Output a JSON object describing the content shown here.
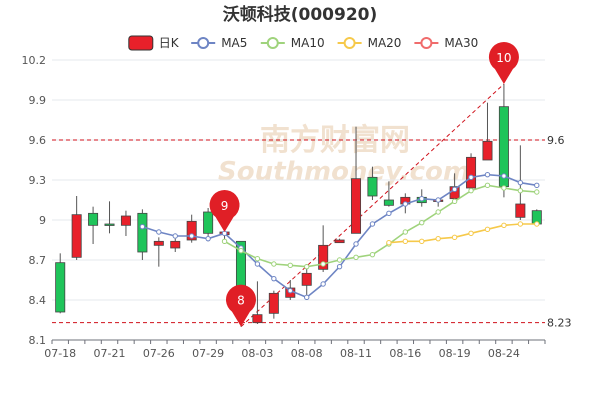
{
  "chart_data": {
    "type": "candlestick",
    "title": "沃顿科技(000920)",
    "watermark": {
      "cn": "南方财富网",
      "en": "Southmoney.com"
    },
    "legend": [
      {
        "key": "k",
        "label": "日K",
        "color": "#e8202a",
        "style": "candle"
      },
      {
        "key": "ma5",
        "label": "MA5",
        "color": "#6e85c4",
        "style": "line"
      },
      {
        "key": "ma10",
        "label": "MA10",
        "color": "#9fd37c",
        "style": "line"
      },
      {
        "key": "ma20",
        "label": "MA20",
        "color": "#f6c94a",
        "style": "line"
      },
      {
        "key": "ma30",
        "label": "MA30",
        "color": "#f06c6c",
        "style": "line"
      }
    ],
    "colors": {
      "up": "#e8202a",
      "down": "#1fc45a",
      "grid": "#e6e9ee",
      "ref": "#d0111b"
    },
    "ylim": [
      8.1,
      10.2
    ],
    "yticks": [
      8.1,
      8.4,
      8.7,
      9,
      9.3,
      9.6,
      9.9,
      10.2
    ],
    "ytick_labels": [
      "8.1",
      "8.4",
      "8.7",
      "9",
      "9.3",
      "9.6",
      "9.9",
      "10.2"
    ],
    "dates": [
      "07-18",
      "07-19",
      "07-20",
      "07-21",
      "07-22",
      "07-25",
      "07-26",
      "07-27",
      "07-28",
      "07-29",
      "08-01",
      "08-02",
      "08-03",
      "08-04",
      "08-05",
      "08-08",
      "08-09",
      "08-10",
      "08-11",
      "08-12",
      "08-15",
      "08-16",
      "08-17",
      "08-18",
      "08-19",
      "08-22",
      "08-23",
      "08-24",
      "08-25",
      "08-26"
    ],
    "xtick_labels": [
      "07-18",
      "07-21",
      "07-26",
      "07-29",
      "08-03",
      "08-08",
      "08-11",
      "08-16",
      "08-19",
      "08-24"
    ],
    "xtick_indices": [
      0,
      3,
      6,
      9,
      12,
      15,
      18,
      21,
      24,
      27
    ],
    "ohlc": [
      [
        8.68,
        8.75,
        8.3,
        8.31
      ],
      [
        8.72,
        9.18,
        8.7,
        9.04
      ],
      [
        9.05,
        9.1,
        8.82,
        8.96
      ],
      [
        8.97,
        9.14,
        8.9,
        8.96
      ],
      [
        8.96,
        9.07,
        8.88,
        9.03
      ],
      [
        9.05,
        9.08,
        8.7,
        8.76
      ],
      [
        8.81,
        8.87,
        8.65,
        8.84
      ],
      [
        8.79,
        8.86,
        8.76,
        8.84
      ],
      [
        8.85,
        9.04,
        8.83,
        8.99
      ],
      [
        9.06,
        9.09,
        8.84,
        8.9
      ],
      [
        8.89,
        8.94,
        8.82,
        8.91
      ],
      [
        8.84,
        8.84,
        8.2,
        8.3
      ],
      [
        8.23,
        8.54,
        8.22,
        8.29
      ],
      [
        8.3,
        8.47,
        8.26,
        8.45
      ],
      [
        8.42,
        8.55,
        8.4,
        8.49
      ],
      [
        8.51,
        8.65,
        8.4,
        8.6
      ],
      [
        8.63,
        8.96,
        8.61,
        8.81
      ],
      [
        8.83,
        8.86,
        8.83,
        8.85
      ],
      [
        8.9,
        9.7,
        8.9,
        9.31
      ],
      [
        9.32,
        9.4,
        9.15,
        9.18
      ],
      [
        9.15,
        9.29,
        9.1,
        9.11
      ],
      [
        9.12,
        9.2,
        9.05,
        9.17
      ],
      [
        9.17,
        9.23,
        9.1,
        9.13
      ],
      [
        9.14,
        9.16,
        9.1,
        9.15
      ],
      [
        9.16,
        9.35,
        9.12,
        9.25
      ],
      [
        9.24,
        9.5,
        9.24,
        9.47
      ],
      [
        9.45,
        9.88,
        9.45,
        9.59
      ],
      [
        9.85,
        10.02,
        9.17,
        9.25
      ],
      [
        9.02,
        9.56,
        9.0,
        9.12
      ],
      [
        9.07,
        9.08,
        8.97,
        8.97
      ]
    ],
    "ma5": [
      null,
      null,
      null,
      null,
      null,
      8.95,
      8.91,
      8.88,
      8.88,
      8.86,
      8.9,
      8.79,
      8.67,
      8.56,
      8.47,
      8.42,
      8.52,
      8.65,
      8.82,
      8.97,
      9.05,
      9.12,
      9.16,
      9.15,
      9.23,
      9.32,
      9.34,
      9.33,
      9.28,
      9.26
    ],
    "ma10": [
      null,
      null,
      null,
      null,
      null,
      null,
      null,
      null,
      null,
      null,
      8.84,
      8.77,
      8.71,
      8.67,
      8.66,
      8.65,
      8.67,
      8.7,
      8.72,
      8.74,
      8.82,
      8.91,
      8.98,
      9.06,
      9.14,
      9.22,
      9.26,
      9.24,
      9.22,
      9.21
    ],
    "ma20": [
      null,
      null,
      null,
      null,
      null,
      null,
      null,
      null,
      null,
      null,
      null,
      null,
      null,
      null,
      null,
      null,
      null,
      null,
      null,
      null,
      8.83,
      8.84,
      8.84,
      8.86,
      8.87,
      8.9,
      8.93,
      8.96,
      8.97,
      8.97
    ],
    "ma30": [],
    "markers": [
      {
        "label": "9",
        "index": 10,
        "value": 8.91
      },
      {
        "label": "8",
        "index": 11,
        "value": 8.2
      },
      {
        "label": "10",
        "index": 27,
        "value": 10.02
      }
    ],
    "ref_lines": [
      {
        "value": 9.6,
        "label": "9.6"
      },
      {
        "value": 8.23,
        "label": "8.23"
      }
    ],
    "trend_line": {
      "from": {
        "index": 11,
        "value": 8.2
      },
      "to": {
        "index": 27,
        "value": 10.02
      }
    },
    "grid": true,
    "legend_position": "top-center"
  }
}
